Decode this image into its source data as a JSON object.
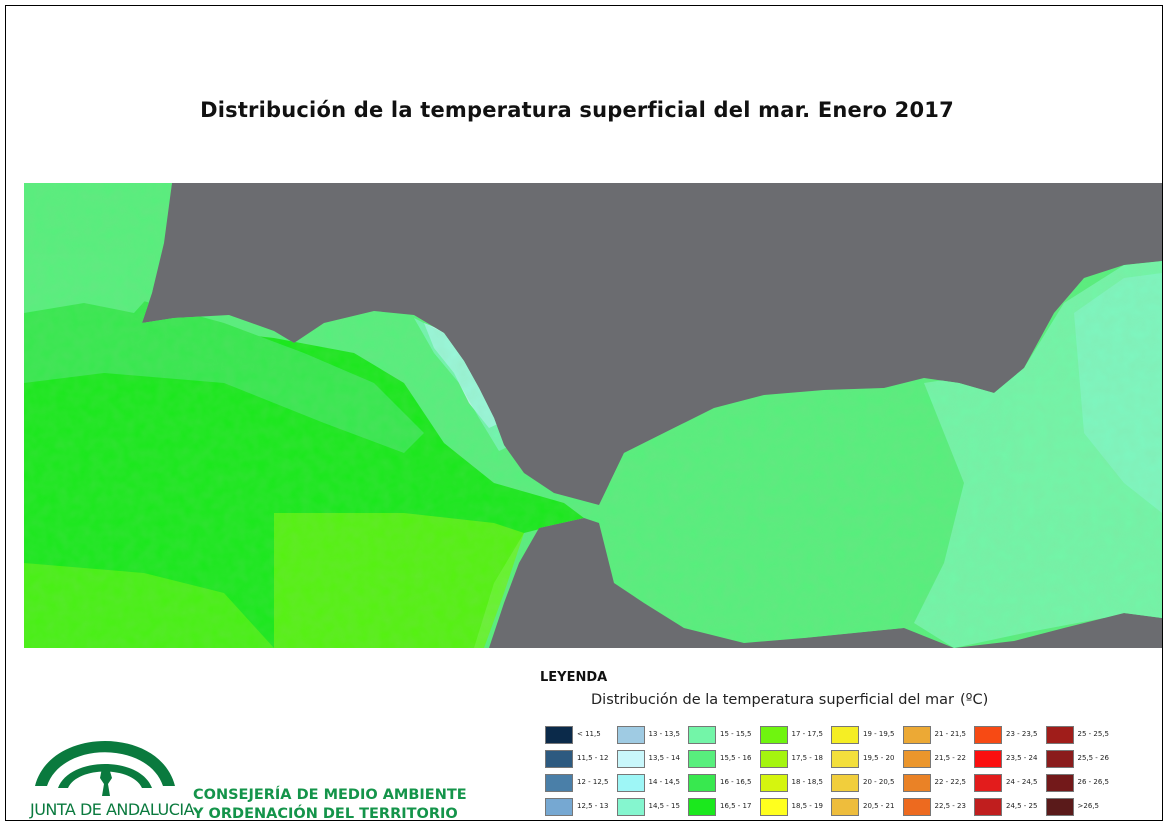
{
  "title": "Distribución de la temperatura superficial del mar. Enero 2017",
  "legend": {
    "heading": "LEYENDA",
    "subtitle": "Distribución de la temperatura superficial del mar",
    "unit": "(ºC)",
    "items": [
      {
        "label": "< 11,5",
        "color": "#0b2a4a"
      },
      {
        "label": "11,5 - 12",
        "color": "#2d5a80"
      },
      {
        "label": "12 - 12,5",
        "color": "#4a7fa8"
      },
      {
        "label": "12,5 - 13",
        "color": "#76a8d2"
      },
      {
        "label": "13 - 13,5",
        "color": "#9fcbe3"
      },
      {
        "label": "13,5 - 14",
        "color": "#c9f7fb"
      },
      {
        "label": "14 - 14,5",
        "color": "#9ef6f6"
      },
      {
        "label": "14,5 - 15",
        "color": "#85f6cf"
      },
      {
        "label": "15 - 15,5",
        "color": "#73f5a8"
      },
      {
        "label": "15,5 - 16",
        "color": "#58ef7d"
      },
      {
        "label": "16 - 16,5",
        "color": "#38e84f"
      },
      {
        "label": "16,5 - 17",
        "color": "#1be81d"
      },
      {
        "label": "17 - 17,5",
        "color": "#6ff50f"
      },
      {
        "label": "17,5 - 18",
        "color": "#a5f50f"
      },
      {
        "label": "18 - 18,5",
        "color": "#d5f50f"
      },
      {
        "label": "18,5 - 19",
        "color": "#ffff1e"
      },
      {
        "label": "19 - 19,5",
        "color": "#f5ee24"
      },
      {
        "label": "19,5 - 20",
        "color": "#f3df3c"
      },
      {
        "label": "20 - 20,5",
        "color": "#f1ce3c"
      },
      {
        "label": "20,5 - 21",
        "color": "#eebd3c"
      },
      {
        "label": "21 - 21,5",
        "color": "#eca935"
      },
      {
        "label": "21,5 - 22",
        "color": "#eb962c"
      },
      {
        "label": "22 - 22,5",
        "color": "#ea8226"
      },
      {
        "label": "22,5 - 23",
        "color": "#ed6a1f"
      },
      {
        "label": "23 - 23,5",
        "color": "#f74a14"
      },
      {
        "label": "23,5 - 24",
        "color": "#fb0f0f"
      },
      {
        "label": "24 - 24,5",
        "color": "#e31c1c"
      },
      {
        "label": "24,5 - 25",
        "color": "#c01e1e"
      },
      {
        "label": "25 - 25,5",
        "color": "#a01d1a"
      },
      {
        "label": "25,5 - 26",
        "color": "#8a1c1c"
      },
      {
        "label": "26 - 26,5",
        "color": "#73191a"
      },
      {
        "label": ">26,5",
        "color": "#5a1a1a"
      }
    ]
  },
  "logo": {
    "org_name": "JUNTA DE ANDALUCIA",
    "department_line1": "CONSEJERÍA DE MEDIO AMBIENTE",
    "department_line2": "Y ORDENACIÓN DEL TERRITORIO",
    "color": "#0a7a3e"
  },
  "map": {
    "land_color": "#6b6c70",
    "sea_colors": [
      "#58ef7d",
      "#1be81d",
      "#38e84f",
      "#73f5a8",
      "#85f6cf",
      "#6ff50f",
      "#c9f7fb"
    ]
  }
}
